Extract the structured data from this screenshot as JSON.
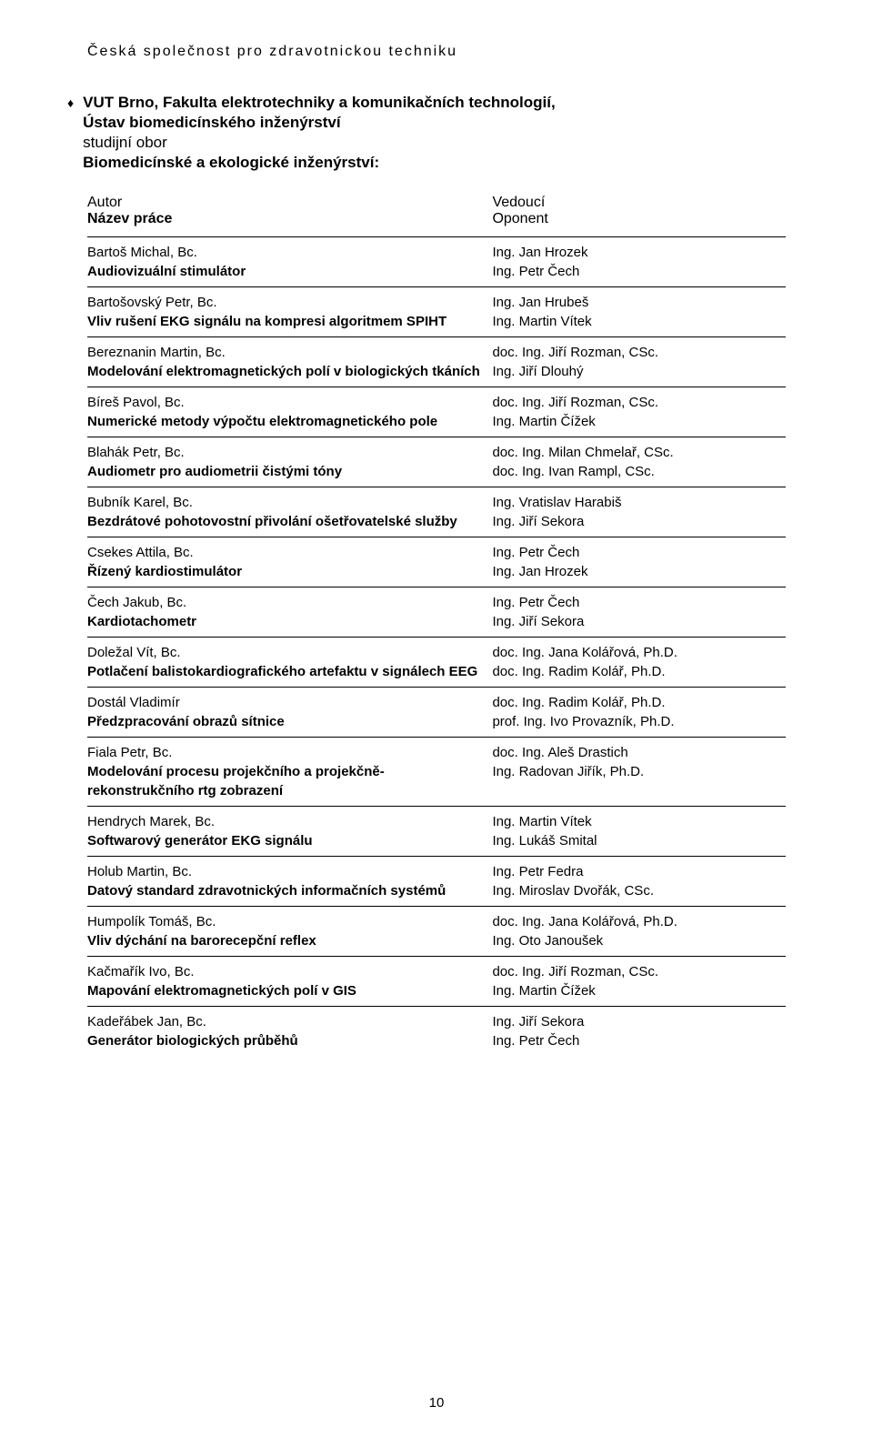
{
  "header": "Česká společnost pro zdravotnickou techniku",
  "university": {
    "line1": "VUT Brno, Fakulta elektrotechniky a komunikačních technologií,",
    "line2": "Ústav biomedicínského inženýrství",
    "line3": "studijní obor",
    "line4": "Biomedicínské a ekologické inženýrství:"
  },
  "columns": {
    "left1": "Autor",
    "left2": "Název práce",
    "right1": "Vedoucí",
    "right2": "Oponent"
  },
  "entries": [
    {
      "author": "Bartoš Michal, Bc.",
      "title": "Audiovizuální stimulátor",
      "supervisor": "Ing. Jan Hrozek",
      "opponent": "Ing. Petr Čech"
    },
    {
      "author": "Bartošovský Petr, Bc.",
      "title": "Vliv rušení EKG signálu na kompresi algoritmem SPIHT",
      "supervisor": "Ing. Jan Hrubeš",
      "opponent": "Ing. Martin Vítek"
    },
    {
      "author": "Bereznanin Martin, Bc.",
      "title": "Modelování elektromagnetických polí v biologických tkáních",
      "supervisor": "doc. Ing. Jiří Rozman, CSc.",
      "opponent": "Ing. Jiří Dlouhý"
    },
    {
      "author": "Bíreš Pavol, Bc.",
      "title": "Numerické metody výpočtu elektromagnetického pole",
      "supervisor": "doc. Ing. Jiří Rozman, CSc.",
      "opponent": "Ing. Martin Čížek"
    },
    {
      "author": "Blahák Petr, Bc.",
      "title": "Audiometr pro audiometrii čistými tóny",
      "supervisor": "doc. Ing. Milan Chmelař, CSc.",
      "opponent": "doc. Ing. Ivan Rampl, CSc."
    },
    {
      "author": "Bubník Karel, Bc.",
      "title": "Bezdrátové pohotovostní přivolání ošetřovatelské služby",
      "supervisor": "Ing. Vratislav Harabiš",
      "opponent": "Ing. Jiří Sekora"
    },
    {
      "author": "Csekes Attila, Bc.",
      "title": "Řízený kardiostimulátor",
      "supervisor": "Ing. Petr Čech",
      "opponent": "Ing. Jan Hrozek"
    },
    {
      "author": "Čech Jakub, Bc.",
      "title": "Kardiotachometr",
      "supervisor": "Ing. Petr Čech",
      "opponent": "Ing. Jiří Sekora"
    },
    {
      "author": "Doležal Vít, Bc.",
      "title": "Potlačení balistokardiografického artefaktu v signálech EEG",
      "supervisor": "doc. Ing. Jana Kolářová, Ph.D.",
      "opponent": "doc. Ing. Radim Kolář, Ph.D."
    },
    {
      "author": "Dostál Vladimír",
      "title": "Předzpracování obrazů sítnice",
      "supervisor": "doc. Ing. Radim Kolář, Ph.D.",
      "opponent": "prof. Ing. Ivo Provazník, Ph.D."
    },
    {
      "author": "Fiala Petr, Bc.",
      "title": "Modelování procesu projekčního a projekčně-rekonstrukčního rtg zobrazení",
      "supervisor": "doc. Ing. Aleš Drastich",
      "opponent": "Ing. Radovan Jiřík, Ph.D."
    },
    {
      "author": "Hendrych Marek, Bc.",
      "title": "Softwarový generátor EKG signálu",
      "supervisor": "Ing. Martin Vítek",
      "opponent": "Ing. Lukáš Smital"
    },
    {
      "author": "Holub Martin, Bc.",
      "title": "Datový standard zdravotnických informačních systémů",
      "supervisor": "Ing. Petr Fedra",
      "opponent": "Ing. Miroslav Dvořák, CSc."
    },
    {
      "author": "Humpolík Tomáš, Bc.",
      "title": "Vliv dýchání na barorecepční reflex",
      "supervisor": "doc. Ing. Jana Kolářová, Ph.D.",
      "opponent": "Ing. Oto Janoušek"
    },
    {
      "author": "Kačmařík Ivo, Bc.",
      "title": "Mapování elektromagnetických polí v GIS",
      "supervisor": "doc. Ing. Jiří Rozman, CSc.",
      "opponent": "Ing. Martin Čížek"
    },
    {
      "author": "Kadeřábek Jan, Bc.",
      "title": "Generátor biologických průběhů",
      "supervisor": "Ing. Jiří Sekora",
      "opponent": "Ing. Petr Čech"
    }
  ],
  "page_number": "10",
  "colors": {
    "text": "#000000",
    "background": "#ffffff",
    "rule": "#000000"
  }
}
